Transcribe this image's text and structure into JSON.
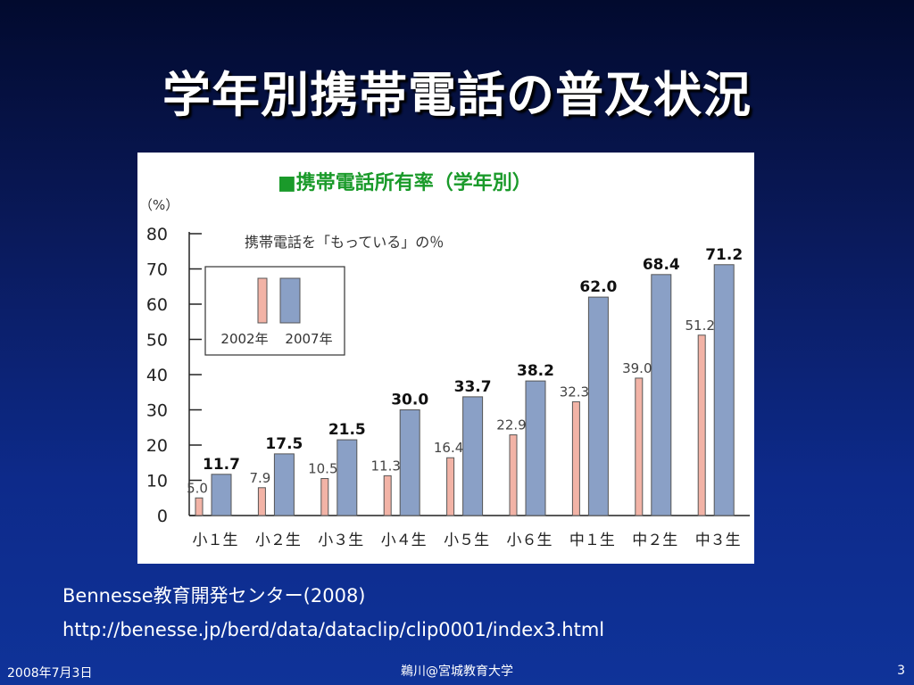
{
  "slide": {
    "title": "学年別携帯電話の普及状況",
    "source_name": "Bennesse教育開発センター(2008)",
    "source_url": "http://benesse.jp/berd/data/dataclip/clip0001/index3.html",
    "footer_date": "2008年7月3日",
    "footer_author": "鵜川@宮城教育大学",
    "footer_page": "3"
  },
  "chart_data": {
    "type": "bar",
    "title": "■携帯電話所有率（学年別）",
    "subtitle": "携帯電話を「もっている」の％",
    "ylabel": "（%）",
    "ylim": [
      0,
      80
    ],
    "yticks": [
      0,
      10,
      20,
      30,
      40,
      50,
      60,
      70,
      80
    ],
    "categories": [
      "小１生",
      "小２生",
      "小３生",
      "小４生",
      "小５生",
      "小６生",
      "中１生",
      "中２生",
      "中３生"
    ],
    "series": [
      {
        "name": "2002年",
        "color": "#f2b3a6",
        "values": [
          5.0,
          7.9,
          10.5,
          11.3,
          16.4,
          22.9,
          32.3,
          39.0,
          51.2
        ]
      },
      {
        "name": "2007年",
        "color": "#8aa0c6",
        "values": [
          11.7,
          17.5,
          21.5,
          30.0,
          33.7,
          38.2,
          62.0,
          68.4,
          71.2
        ]
      }
    ],
    "legend_position": "top-left",
    "title_color": "#1a9a2a"
  }
}
